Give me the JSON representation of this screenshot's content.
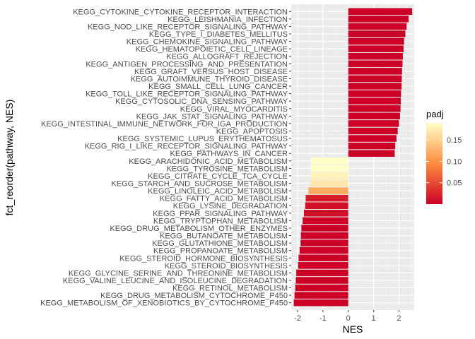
{
  "chart_data": {
    "type": "bar",
    "orientation": "horizontal",
    "xlabel": "NES",
    "ylabel": "fct_reorder(pathway, NES)",
    "xlim": [
      -2.25,
      2.6
    ],
    "xticks": [
      -2,
      -1,
      0,
      1,
      2
    ],
    "xtick_labels": [
      "-2",
      "-1",
      "0",
      "1",
      "2"
    ],
    "grid": true,
    "legend": {
      "title": "padj",
      "placement": "right",
      "range": [
        0.0,
        0.19
      ],
      "ticks": [
        0.05,
        0.1,
        0.15
      ],
      "tick_labels": [
        "0.05",
        "0.10",
        "0.15"
      ],
      "low_color": "#cc0027",
      "mid_color": "#fe8c3c",
      "high_color": "#ffffc8"
    },
    "bars": [
      {
        "pathway": "KEGG_CYTOKINE_CYTOKINE_RECEPTOR_INTERACTION",
        "nes": 2.52,
        "padj": 0.0
      },
      {
        "pathway": "KEGG_LEISHMANIA_INFECTION",
        "nes": 2.38,
        "padj": 0.0
      },
      {
        "pathway": "KEGG_NOD_LIKE_RECEPTOR_SIGNALING_PATHWAY",
        "nes": 2.3,
        "padj": 0.0
      },
      {
        "pathway": "KEGG_TYPE_I_DIABETES_MELLITUS",
        "nes": 2.25,
        "padj": 0.0
      },
      {
        "pathway": "KEGG_CHEMOKINE_SIGNALING_PATHWAY",
        "nes": 2.2,
        "padj": 0.0
      },
      {
        "pathway": "KEGG_HEMATOPOIETIC_CELL_LINEAGE",
        "nes": 2.18,
        "padj": 0.0
      },
      {
        "pathway": "KEGG_ALLOGRAFT_REJECTION",
        "nes": 2.15,
        "padj": 0.0
      },
      {
        "pathway": "KEGG_ANTIGEN_PROCESSING_AND_PRESENTATION",
        "nes": 2.14,
        "padj": 0.0
      },
      {
        "pathway": "KEGG_GRAFT_VERSUS_HOST_DISEASE",
        "nes": 2.12,
        "padj": 0.0
      },
      {
        "pathway": "KEGG_AUTOIMMUNE_THYROID_DISEASE",
        "nes": 2.11,
        "padj": 0.0
      },
      {
        "pathway": "KEGG_SMALL_CELL_LUNG_CANCER",
        "nes": 2.1,
        "padj": 0.0
      },
      {
        "pathway": "KEGG_TOLL_LIKE_RECEPTOR_SIGNALING_PATHWAY",
        "nes": 2.08,
        "padj": 0.0
      },
      {
        "pathway": "KEGG_CYTOSOLIC_DNA_SENSING_PATHWAY",
        "nes": 2.07,
        "padj": 0.0
      },
      {
        "pathway": "KEGG_VIRAL_MYOCARDITIS",
        "nes": 2.06,
        "padj": 0.0
      },
      {
        "pathway": "KEGG_JAK_STAT_SIGNALING_PATHWAY",
        "nes": 2.04,
        "padj": 0.0
      },
      {
        "pathway": "KEGG_INTESTINAL_IMMUNE_NETWORK_FOR_IGA_PRODUCTION",
        "nes": 2.0,
        "padj": 0.0
      },
      {
        "pathway": "KEGG_APOPTOSIS",
        "nes": 1.95,
        "padj": 0.0
      },
      {
        "pathway": "KEGG_SYSTEMIC_LUPUS_ERYTHEMATOSUS",
        "nes": 1.9,
        "padj": 0.0
      },
      {
        "pathway": "KEGG_RIG_I_LIKE_RECEPTOR_SIGNALING_PATHWAY",
        "nes": 1.85,
        "padj": 0.0
      },
      {
        "pathway": "KEGG_PATHWAYS_IN_CANCER",
        "nes": 1.83,
        "padj": 0.0
      },
      {
        "pathway": "KEGG_ARACHIDONIC_ACID_METABOLISM",
        "nes": -1.46,
        "padj": 0.19
      },
      {
        "pathway": "KEGG_TYROSINE_METABOLISM",
        "nes": -1.47,
        "padj": 0.19
      },
      {
        "pathway": "KEGG_CITRATE_CYCLE_TCA_CYCLE",
        "nes": -1.48,
        "padj": 0.18
      },
      {
        "pathway": "KEGG_STARCH_AND_SUCROSE_METABOLISM",
        "nes": -1.5,
        "padj": 0.17
      },
      {
        "pathway": "KEGG_LINOLEIC_ACID_METABOLISM",
        "nes": -1.57,
        "padj": 0.12
      },
      {
        "pathway": "KEGG_FATTY_ACID_METABOLISM",
        "nes": -1.68,
        "padj": 0.02
      },
      {
        "pathway": "KEGG_LYSINE_DEGRADATION",
        "nes": -1.7,
        "padj": 0.01
      },
      {
        "pathway": "KEGG_PPAR_SIGNALING_PATHWAY",
        "nes": -1.75,
        "padj": 0.01
      },
      {
        "pathway": "KEGG_TRYPTOPHAN_METABOLISM",
        "nes": -1.8,
        "padj": 0.0
      },
      {
        "pathway": "KEGG_DRUG_METABOLISM_OTHER_ENZYMES",
        "nes": -1.85,
        "padj": 0.0
      },
      {
        "pathway": "KEGG_BUTANOATE_METABOLISM",
        "nes": -1.87,
        "padj": 0.0
      },
      {
        "pathway": "KEGG_GLUTATHIONE_METABOLISM",
        "nes": -1.88,
        "padj": 0.0
      },
      {
        "pathway": "KEGG_PROPANOATE_METABOLISM",
        "nes": -1.92,
        "padj": 0.0
      },
      {
        "pathway": "KEGG_STEROID_HORMONE_BIOSYNTHESIS",
        "nes": -1.96,
        "padj": 0.0
      },
      {
        "pathway": "KEGG_STEROID_BIOSYNTHESIS",
        "nes": -1.98,
        "padj": 0.0
      },
      {
        "pathway": "KEGG_GLYCINE_SERINE_AND_THREONINE_METABOLISM",
        "nes": -2.05,
        "padj": 0.0
      },
      {
        "pathway": "KEGG_VALINE_LEUCINE_AND_ISOLEUCINE_DEGRADATION",
        "nes": -2.07,
        "padj": 0.0
      },
      {
        "pathway": "KEGG_RETINOL_METABOLISM",
        "nes": -2.09,
        "padj": 0.0
      },
      {
        "pathway": "KEGG_DRUG_METABOLISM_CYTOCHROME_P450",
        "nes": -2.12,
        "padj": 0.0
      },
      {
        "pathway": "KEGG_METABOLISM_OF_XENOBIOTICS_BY_CYTOCHROME_P450",
        "nes": -2.15,
        "padj": 0.0
      }
    ]
  }
}
